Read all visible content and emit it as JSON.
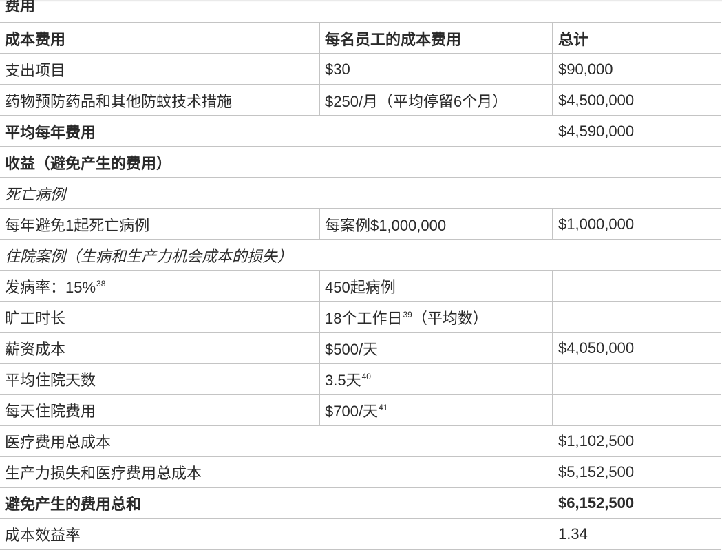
{
  "caption": "费用",
  "rows": [
    {
      "type": "three",
      "style": "bold",
      "c1": "成本费用",
      "c2": "每名员工的成本费用",
      "c3": "总计"
    },
    {
      "type": "three",
      "style": "",
      "c1": "支出项目",
      "c2": "$30",
      "c3": "$90,000"
    },
    {
      "type": "three",
      "style": "",
      "c1": "药物预防药品和其他防蚊技术措施",
      "c2": "$250/月（平均停留6个月）",
      "c3": "$4,500,000"
    },
    {
      "type": "span",
      "style": "bold-label",
      "c1": "平均每年费用",
      "c2": "",
      "c3": "$4,590,000"
    },
    {
      "type": "full",
      "style": "bold",
      "c1": "收益（避免产生的费用）"
    },
    {
      "type": "full",
      "style": "italic",
      "c1": "死亡病例"
    },
    {
      "type": "three",
      "style": "",
      "c1": "每年避免1起死亡病例",
      "c2": "每案例$1,000,000",
      "c3": "$1,000,000"
    },
    {
      "type": "full",
      "style": "italic",
      "c1": "住院案例（生病和生产力机会成本的损失）"
    },
    {
      "type": "three",
      "style": "",
      "c1": "发病率：15% ",
      "c1_sup": "38",
      "c2": "450起病例",
      "c3": ""
    },
    {
      "type": "three",
      "style": "",
      "c1": "旷工时长",
      "c2": "18个工作日",
      "c2_sup": "39",
      "c2_tail": "（平均数）",
      "c3": ""
    },
    {
      "type": "three",
      "style": "",
      "c1": "薪资成本",
      "c2": "$500/天",
      "c3": "$4,050,000"
    },
    {
      "type": "three",
      "style": "",
      "c1": "平均住院天数",
      "c2": "3.5天",
      "c2_sup": "40",
      "c3": ""
    },
    {
      "type": "three",
      "style": "",
      "c1": "每天住院费用",
      "c2": "$700/天",
      "c2_sup": "41",
      "c3": ""
    },
    {
      "type": "span",
      "style": "",
      "c1": "医疗费用总成本",
      "c2": "",
      "c3": "$1,102,500"
    },
    {
      "type": "span",
      "style": "",
      "c1": "生产力损失和医疗费用总成本",
      "c2": "",
      "c3": "$5,152,500"
    },
    {
      "type": "span",
      "style": "bold",
      "c1": "避免产生的费用总和",
      "c2": "",
      "c3": "$6,152,500"
    },
    {
      "type": "span",
      "style": "",
      "c1": "成本效益率",
      "c2": "",
      "c3": "1.34"
    }
  ]
}
